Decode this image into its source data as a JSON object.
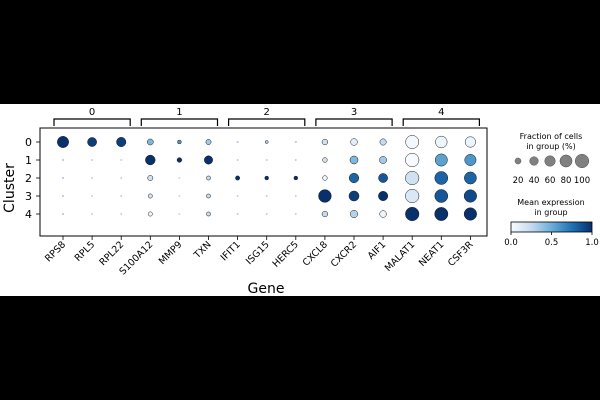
{
  "chart_data": {
    "type": "dotplot",
    "title": "",
    "xlabel": "Gene",
    "ylabel": "Cluster",
    "clusters": [
      "0",
      "1",
      "2",
      "3",
      "4"
    ],
    "genes": [
      "RPS8",
      "RPL5",
      "RPL22",
      "S100A12",
      "MMP9",
      "TXN",
      "IFIT1",
      "ISG15",
      "HERC5",
      "CXCL8",
      "CXCR2",
      "AIF1",
      "MALAT1",
      "NEAT1",
      "CSF3R"
    ],
    "gene_groups": [
      {
        "label": "0",
        "genes": [
          "RPS8",
          "RPL5",
          "RPL22"
        ]
      },
      {
        "label": "1",
        "genes": [
          "S100A12",
          "MMP9",
          "TXN"
        ]
      },
      {
        "label": "2",
        "genes": [
          "IFIT1",
          "ISG15",
          "HERC5"
        ]
      },
      {
        "label": "3",
        "genes": [
          "CXCL8",
          "CXCR2",
          "AIF1"
        ]
      },
      {
        "label": "4",
        "genes": [
          "MALAT1",
          "NEAT1",
          "CSF3R"
        ]
      }
    ],
    "fraction_pct": [
      [
        70,
        45,
        48,
        20,
        8,
        15,
        3,
        5,
        3,
        18,
        25,
        22,
        95,
        75,
        60
      ],
      [
        3,
        2,
        2,
        52,
        12,
        38,
        2,
        2,
        2,
        12,
        35,
        28,
        100,
        82,
        70
      ],
      [
        3,
        2,
        2,
        15,
        3,
        9,
        10,
        8,
        8,
        12,
        50,
        45,
        100,
        92,
        80
      ],
      [
        3,
        2,
        2,
        10,
        3,
        9,
        2,
        2,
        2,
        88,
        55,
        48,
        100,
        92,
        85
      ],
      [
        3,
        2,
        2,
        10,
        3,
        9,
        2,
        2,
        2,
        18,
        30,
        25,
        100,
        95,
        85
      ]
    ],
    "mean_expression": [
      [
        1.0,
        0.95,
        0.95,
        0.45,
        0.6,
        0.35,
        0.3,
        0.3,
        0.3,
        0.2,
        0.1,
        0.25,
        0.02,
        0.05,
        0.05
      ],
      [
        0.3,
        0.3,
        0.3,
        1.0,
        1.0,
        1.0,
        0.3,
        0.3,
        0.3,
        0.2,
        0.45,
        0.35,
        0.0,
        0.55,
        0.6
      ],
      [
        0.3,
        0.3,
        0.3,
        0.2,
        0.2,
        0.25,
        1.0,
        1.0,
        1.0,
        0.05,
        0.8,
        0.85,
        0.2,
        0.8,
        0.8
      ],
      [
        0.3,
        0.3,
        0.3,
        0.2,
        0.2,
        0.25,
        0.3,
        0.3,
        0.3,
        1.0,
        0.95,
        1.0,
        0.15,
        0.85,
        0.9
      ],
      [
        0.3,
        0.3,
        0.3,
        0.05,
        0.2,
        0.25,
        0.3,
        0.3,
        0.3,
        0.25,
        0.3,
        0.05,
        1.0,
        1.0,
        1.0
      ]
    ],
    "size_legend": {
      "title_line1": "Fraction of cells",
      "title_line2": "in group (%)",
      "values": [
        20,
        40,
        60,
        80,
        100
      ],
      "labels": [
        "20",
        "40",
        "60",
        "80",
        "100"
      ]
    },
    "color_legend": {
      "title_line1": "Mean expression",
      "title_line2": "in group",
      "range": [
        0,
        1
      ],
      "tick_labels": [
        "0.0",
        "0.5",
        "1.0"
      ],
      "colormap": "Blues",
      "low_color": "#f7fbff",
      "high_color": "#08306b"
    },
    "grid": false
  }
}
